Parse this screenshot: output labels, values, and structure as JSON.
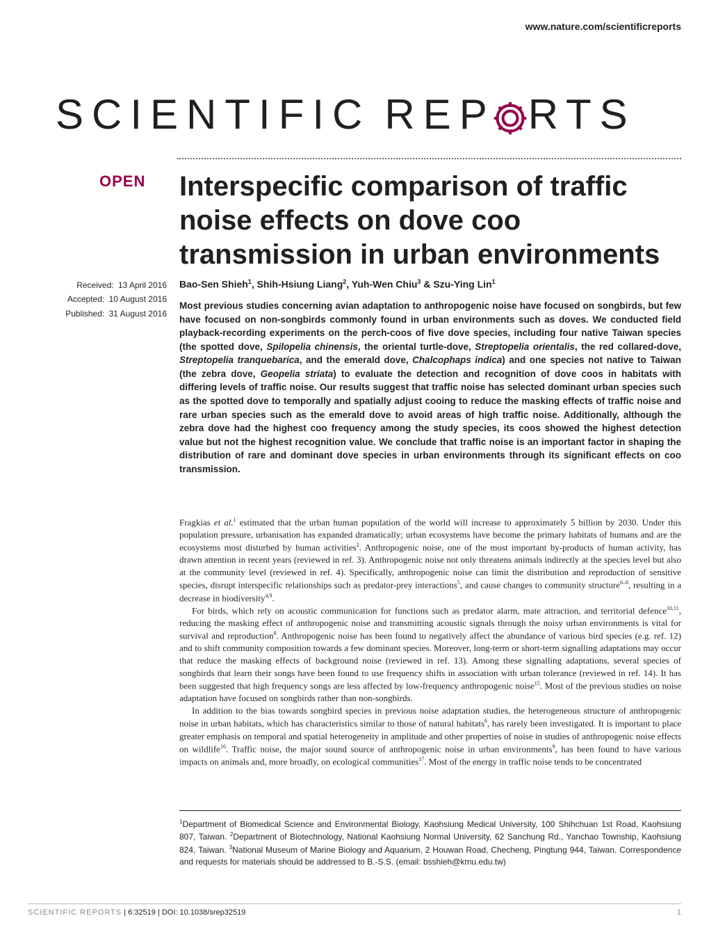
{
  "header": {
    "url": "www.nature.com/scientificreports"
  },
  "logo": {
    "text_left": "SCIENTIFIC",
    "text_right_1": "REP",
    "text_right_2": "RTS",
    "gear_color": "#96004b"
  },
  "badge": {
    "open": "OPEN"
  },
  "title": "Interspecific comparison of traffic noise effects on dove coo transmission in urban environments",
  "meta": {
    "received_label": "Received:",
    "received_value": "13 April 2016",
    "accepted_label": "Accepted:",
    "accepted_value": "10 August 2016",
    "published_label": "Published:",
    "published_value": "31 August 2016"
  },
  "authors_html": "Bao-Sen Shieh<sup>1</sup>, Shih-Hsiung Liang<sup>2</sup>, Yuh-Wen Chiu<sup>3</sup> & Szu-Ying Lin<sup>1</sup>",
  "abstract_html": "Most previous studies concerning avian adaptation to anthropogenic noise have focused on songbirds, but few have focused on non-songbirds commonly found in urban environments such as doves. We conducted field playback-recording experiments on the perch-coos of five dove species, including four native Taiwan species (the spotted dove, <i>Spilopelia chinensis</i>, the oriental turtle-dove, <i>Streptopelia orientalis</i>, the red collared-dove, <i>Streptopelia tranquebarica</i>, and the emerald dove, <i>Chalcophaps indica</i>) and one species not native to Taiwan (the zebra dove, <i>Geopelia striata</i>) to evaluate the detection and recognition of dove coos in habitats with differing levels of traffic noise. Our results suggest that traffic noise has selected dominant urban species such as the spotted dove to temporally and spatially adjust cooing to reduce the masking effects of traffic noise and rare urban species such as the emerald dove to avoid areas of high traffic noise. Additionally, although the zebra dove had the highest coo frequency among the study species, its coos showed the highest detection value but not the highest recognition value. We conclude that traffic noise is an important factor in shaping the distribution of rare and dominant dove species in urban environments through its significant effects on coo transmission.",
  "body": {
    "p1_html": "Fragkias <i>et al.</i><sup>1</sup> estimated that the urban human population of the world will increase to approximately 5 billion by 2030. Under this population pressure, urbanisation has expanded dramatically; urban ecosystems have become the primary habitats of humans and are the ecosystems most disturbed by human activities<sup>2</sup>. Anthropogenic noise, one of the most important by-products of human activity, has drawn attention in recent years (reviewed in ref. 3). Anthropogenic noise not only threatens animals indirectly at the species level but also at the community level (reviewed in ref. 4). Specifically, anthropogenic noise can limit the distribution and reproduction of sensitive species, disrupt interspecific relationships such as predator-prey interactions<sup>5</sup>, and cause changes to community structure<sup>6–8</sup>, resulting in a decrease in biodiversity<sup>4,9</sup>.",
    "p2_html": "For birds, which rely on acoustic communication for functions such as predator alarm, mate attraction, and territorial defence<sup>10,11</sup>, reducing the masking effect of anthropogenic noise and transmitting acoustic signals through the noisy urban environments is vital for survival and reproduction<sup>8</sup>. Anthropogenic noise has been found to negatively affect the abundance of various bird species (e.g. ref. 12) and to shift community composition towards a few dominant species. Moreover, long-term or short-term signalling adaptations may occur that reduce the masking effects of background noise (reviewed in ref. 13). Among these signalling adaptations, several species of songbirds that learn their songs have been found to use frequency shifts in association with urban tolerance (reviewed in ref. 14). It has been suggested that high frequency songs are less affected by low-frequency anthropogenic noise<sup>15</sup>. Most of the previous studies on noise adaptation have focused on songbirds rather than non-songbirds.",
    "p3_html": "In addition to the bias towards songbird species in previous noise adaptation studies, the heterogeneous structure of anthropogenic noise in urban habitats, which has characteristics similar to those of natural habitats<sup>6</sup>, has rarely been investigated. It is important to place greater emphasis on temporal and spatial heterogeneity in amplitude and other properties of noise in studies of anthropogenic noise effects on wildlife<sup>16</sup>. Traffic noise, the major sound source of anthropogenic noise in urban environments<sup>9</sup>, has been found to have various impacts on animals and, more broadly, on ecological communities<sup>17</sup>. Most of the energy in traffic noise tends to be concentrated"
  },
  "affiliations_html": "<sup>1</sup>Department of Biomedical Science and Environmental Biology, Kaohsiung Medical University, 100 Shihchuan 1st Road, Kaohsiung 807, Taiwan. <sup>2</sup>Department of Biotechnology, National Kaohsiung Normal University, 62 Sanchung Rd., Yanchao Township, Kaohsiung 824, Taiwan. <sup>3</sup>National Museum of Marine Biology and Aquarium, 2 Houwan Road, Checheng, Pingtung 944, Taiwan. Correspondence and requests for materials should be addressed to B.-S.S. (email: bsshieh@kmu.edu.tw)",
  "footer": {
    "journal": "SCIENTIFIC REPORTS",
    "citation": " | 6:32519 | DOI: 10.1038/srep32519",
    "page": "1"
  },
  "colors": {
    "brand": "#96004b",
    "text": "#231f20",
    "footer_gray": "#888888",
    "background": "#ffffff"
  },
  "typography": {
    "title_fontsize": 40,
    "logo_fontsize": 60,
    "body_fontsize": 13,
    "abstract_fontsize": 13.5,
    "meta_fontsize": 12
  }
}
